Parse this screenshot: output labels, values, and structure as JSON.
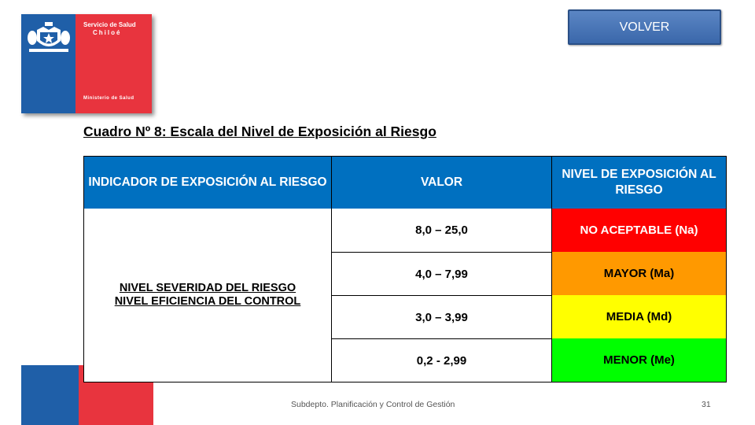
{
  "logo": {
    "line1": "Servicio de Salud",
    "line2": "Chiloé",
    "ministry": "Ministerio de Salud",
    "colors": {
      "blue": "#1f5fa8",
      "red": "#e8343e"
    }
  },
  "volver_button": {
    "label": "VOLVER"
  },
  "heading": "Cuadro Nº 8: Escala del Nivel de Exposición al Riesgo",
  "table": {
    "headers": [
      "INDICADOR DE EXPOSICIÓN AL RIESGO",
      "VALOR",
      "NIVEL DE EXPOSICIÓN AL RIESGO"
    ],
    "indicator": [
      "NIVEL SEVERIDAD DEL RIESGO",
      "NIVEL EFICIENCIA DEL CONTROL"
    ],
    "rows": [
      {
        "value": "8,0 – 25,0",
        "level": "NO ACEPTABLE (Na)",
        "color": "#ff0000",
        "text_color": "#ffffff"
      },
      {
        "value": "4,0 – 7,99",
        "level": "MAYOR (Ma)",
        "color": "#ff9900",
        "text_color": "#000000"
      },
      {
        "value": "3,0 – 3,99",
        "level": "MEDIA (Md)",
        "color": "#ffff00",
        "text_color": "#000000"
      },
      {
        "value": "0,2  - 2,99",
        "level": "MENOR (Me)",
        "color": "#00ff00",
        "text_color": "#000000"
      }
    ],
    "header_color": "#0070c0"
  },
  "footer": {
    "text": "Subdepto. Planificación y Control de Gestión",
    "page": "31"
  }
}
